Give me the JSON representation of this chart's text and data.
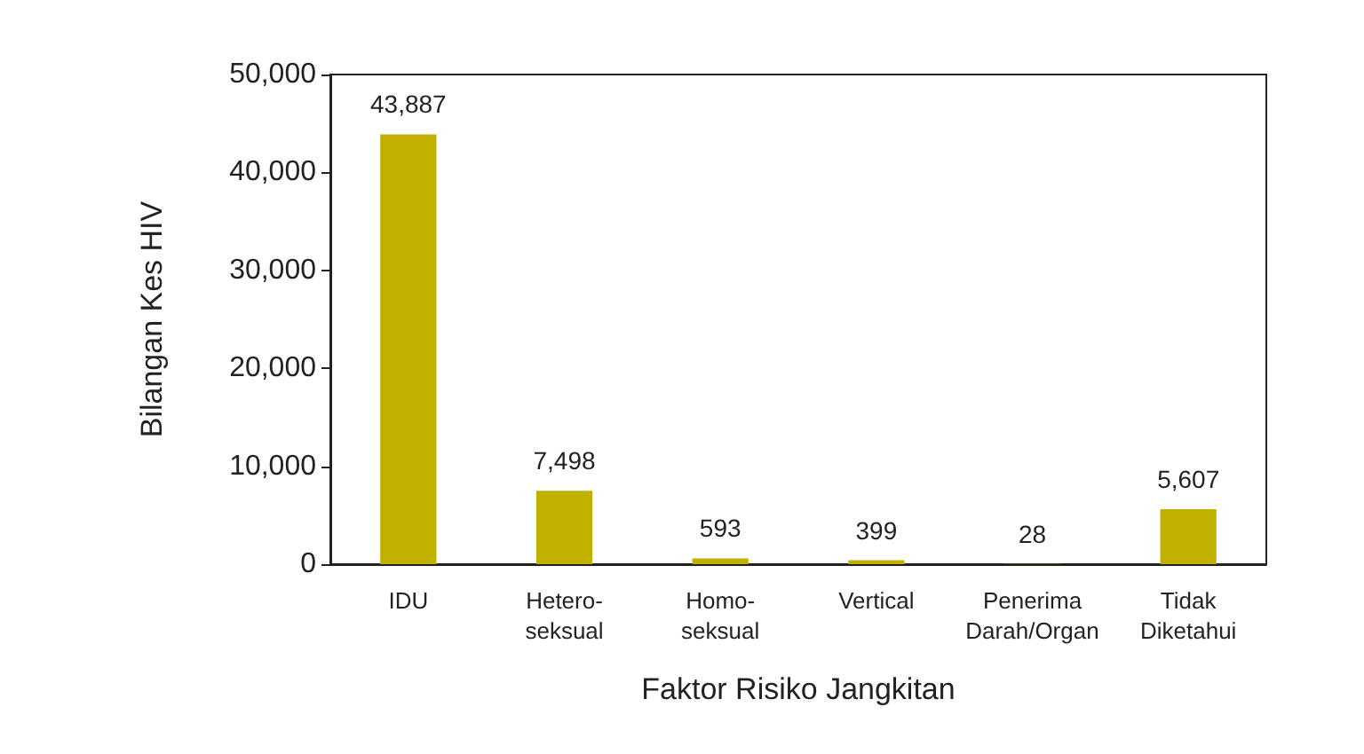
{
  "chart_data": {
    "type": "bar",
    "xlabel": "Faktor Risiko Jangkitan",
    "ylabel": "Bilangan Kes HIV",
    "categories": [
      "IDU",
      "Hetero-\nseksual",
      "Homo-\nseksual",
      "Vertical",
      "Penerima\nDarah/Organ",
      "Tidak\nDiketahui"
    ],
    "values": [
      43887,
      7498,
      593,
      399,
      28,
      5607
    ],
    "color": "#c0b000",
    "ylim": [
      0,
      50000
    ],
    "yticks": [
      {
        "value": 0,
        "label": "0"
      },
      {
        "value": 10000,
        "label": "10,000"
      },
      {
        "value": 20000,
        "label": "20,000"
      },
      {
        "value": 30000,
        "label": "30,000"
      },
      {
        "value": 40000,
        "label": "40,000"
      },
      {
        "value": 50000,
        "label": "50,000"
      }
    ],
    "value_labels": [
      "43,887",
      "7,498",
      "593",
      "399",
      "28",
      "5,607"
    ],
    "grid": false
  }
}
